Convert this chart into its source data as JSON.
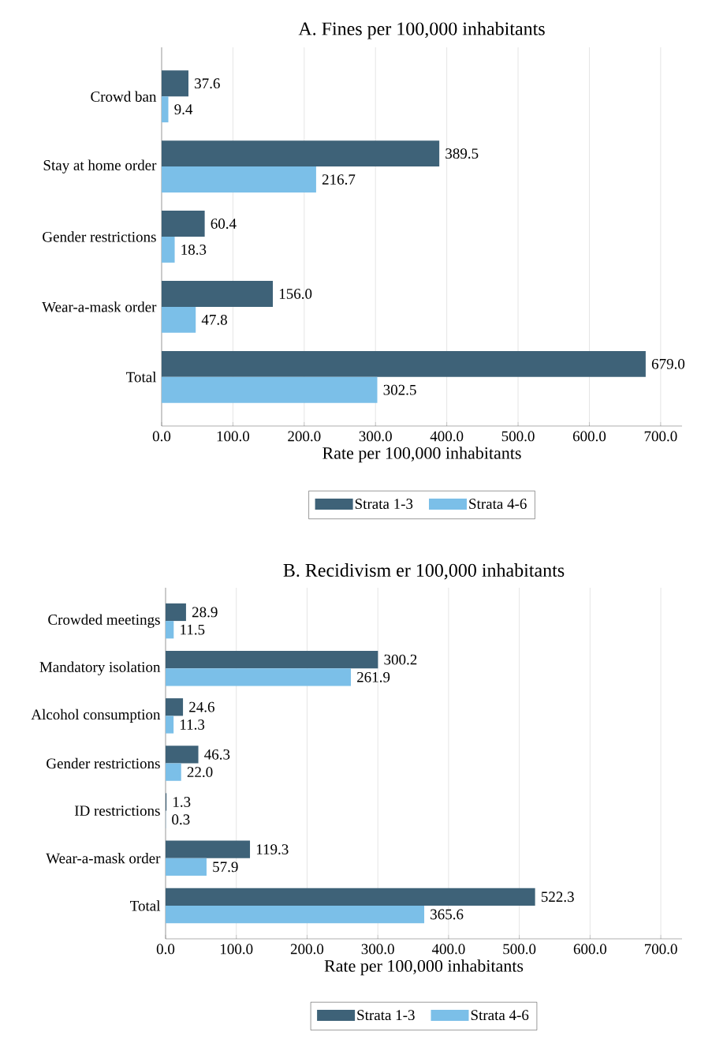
{
  "chart_data": [
    {
      "type": "bar",
      "orientation": "horizontal",
      "title": "A. Fines per 100,000 inhabitants",
      "xlabel": "Rate per 100,000 inhabitants",
      "categories": [
        "Crowd ban",
        "Stay at home order",
        "Gender restrictions",
        "Wear-a-mask order",
        "Total"
      ],
      "series": [
        {
          "name": "Strata 1-3",
          "color": "#3e6278",
          "values": [
            37.6,
            389.5,
            60.4,
            156.0,
            679.0
          ],
          "value_labels": [
            "37.6",
            "389.5",
            "60.4",
            "156.0",
            "679.0"
          ]
        },
        {
          "name": "Strata 4-6",
          "color": "#7bbfe8",
          "values": [
            9.4,
            216.7,
            18.3,
            47.8,
            302.5
          ],
          "value_labels": [
            "9.4",
            "216.7",
            "18.3",
            "47.8",
            "302.5"
          ]
        }
      ],
      "xlim": [
        0,
        730
      ],
      "xticks": [
        {
          "value": 0,
          "label": "0.0"
        },
        {
          "value": 100,
          "label": "100.0"
        },
        {
          "value": 200,
          "label": "200.0"
        },
        {
          "value": 300,
          "label": "300.0"
        },
        {
          "value": 400,
          "label": "400.0"
        },
        {
          "value": 500,
          "label": "500.0"
        },
        {
          "value": 600,
          "label": "600.0"
        },
        {
          "value": 700,
          "label": "700.0"
        }
      ],
      "grid": "x",
      "legend": "bottom"
    },
    {
      "type": "bar",
      "orientation": "horizontal",
      "title": "B. Recidivism er 100,000 inhabitants",
      "xlabel": "Rate per 100,000 inhabitants",
      "categories": [
        "Crowded meetings",
        "Mandatory isolation",
        "Alcohol consumption",
        "Gender restrictions",
        "ID restrictions",
        "Wear-a-mask order",
        "Total"
      ],
      "series": [
        {
          "name": "Strata 1-3",
          "color": "#3e6278",
          "values": [
            28.9,
            300.2,
            24.6,
            46.3,
            1.3,
            119.3,
            522.3
          ],
          "value_labels": [
            "28.9",
            "300.2",
            "24.6",
            "46.3",
            "1.3",
            "119.3",
            "522.3"
          ]
        },
        {
          "name": "Strata 4-6",
          "color": "#7bbfe8",
          "values": [
            11.5,
            261.9,
            11.3,
            22.0,
            0.3,
            57.9,
            365.6
          ],
          "value_labels": [
            "11.5",
            "261.9",
            "11.3",
            "22.0",
            "0.3",
            "57.9",
            "365.6"
          ]
        }
      ],
      "xlim": [
        0,
        730
      ],
      "xticks": [
        {
          "value": 0,
          "label": "0.0"
        },
        {
          "value": 100,
          "label": "100.0"
        },
        {
          "value": 200,
          "label": "200.0"
        },
        {
          "value": 300,
          "label": "300.0"
        },
        {
          "value": 400,
          "label": "400.0"
        },
        {
          "value": 500,
          "label": "500.0"
        },
        {
          "value": 600,
          "label": "600.0"
        },
        {
          "value": 700,
          "label": "700.0"
        }
      ],
      "grid": "x",
      "legend": "bottom"
    }
  ]
}
